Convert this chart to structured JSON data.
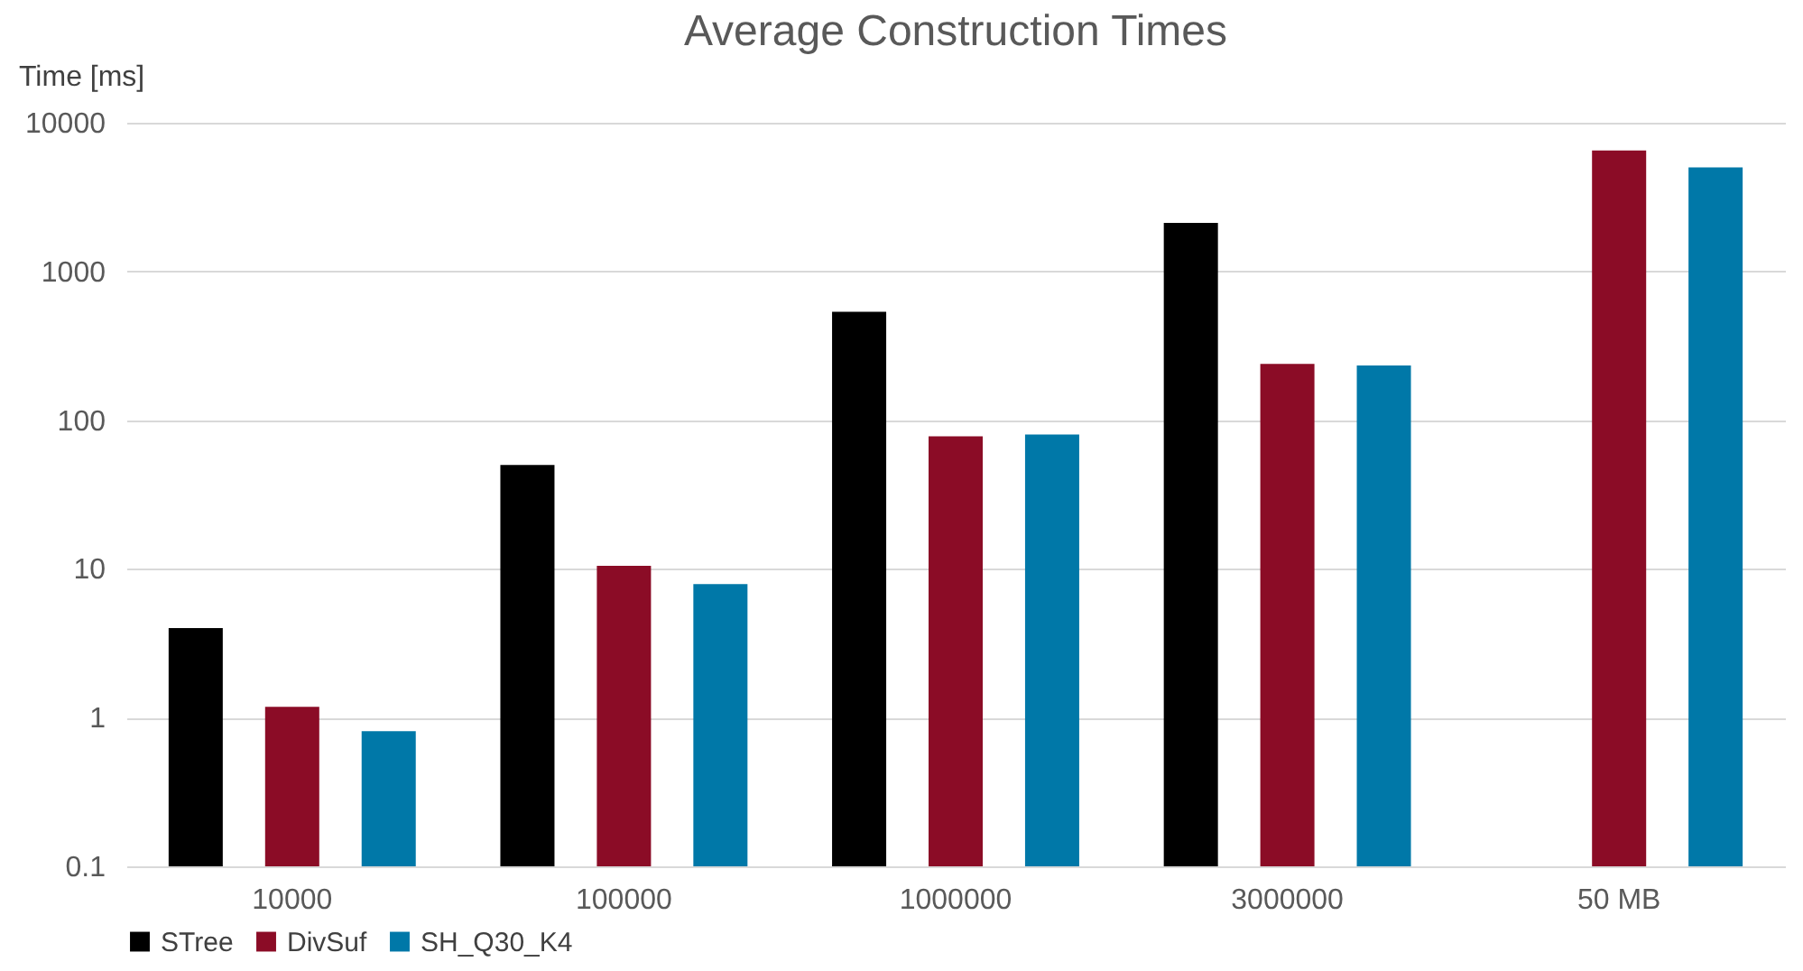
{
  "chart_data": {
    "type": "bar",
    "title": "Average Construction Times",
    "ylabel": "Time [ms]",
    "categories": [
      "10000",
      "100000",
      "1000000",
      "3000000",
      "50 MB"
    ],
    "series": [
      {
        "name": "STree",
        "color": "#000000",
        "values": [
          4,
          50,
          535,
          2120,
          null
        ]
      },
      {
        "name": "DivSuf",
        "color": "#8b0c26",
        "values": [
          1.18,
          10.5,
          78,
          239,
          6500
        ]
      },
      {
        "name": "SH_Q30_K4",
        "color": "#0078a8",
        "values": [
          0.81,
          7.9,
          80,
          233,
          5000
        ]
      }
    ],
    "log": true,
    "ylim": [
      0.1,
      10000
    ],
    "yticks": [
      0.1,
      1,
      10,
      100,
      1000,
      10000
    ],
    "grid": "y",
    "legend": "bottom"
  }
}
